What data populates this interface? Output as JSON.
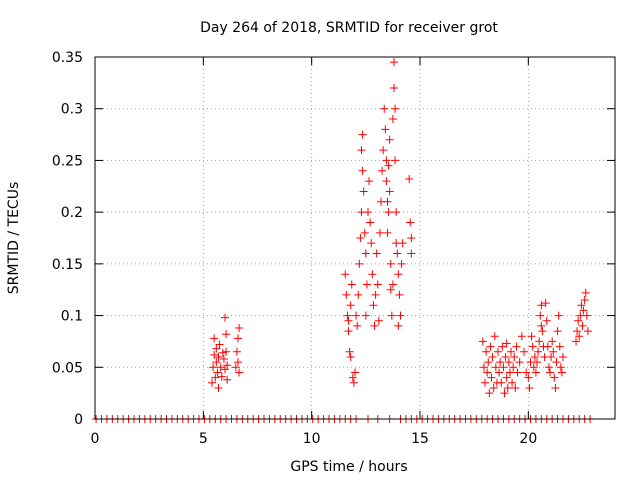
{
  "chart_data": {
    "type": "scatter",
    "title": "Day 264 of 2018, SRMTID for receiver grot",
    "xlabel": "GPS time / hours",
    "ylabel": "SRMTID / TECUs",
    "xlim": [
      0,
      24
    ],
    "ylim": [
      0,
      0.35
    ],
    "xticks": [
      0,
      5,
      10,
      15,
      20
    ],
    "xtick_labels": [
      "0",
      "5",
      "10",
      "15",
      "20"
    ],
    "yticks": [
      0,
      0.05,
      0.1,
      0.15,
      0.2,
      0.25,
      0.3,
      0.35
    ],
    "ytick_labels": [
      "0",
      "0.05",
      "0.1",
      "0.15",
      "0.2",
      "0.25",
      "0.3",
      "0.35"
    ],
    "grid": true,
    "marker": "+",
    "color": "#ff0000",
    "series": [
      {
        "name": "SRMTID",
        "points": [
          [
            0.05,
            0
          ],
          [
            0.3,
            0
          ],
          [
            0.55,
            0
          ],
          [
            0.8,
            0
          ],
          [
            1.05,
            0
          ],
          [
            1.3,
            0
          ],
          [
            1.55,
            0
          ],
          [
            1.8,
            0
          ],
          [
            2.05,
            0
          ],
          [
            2.3,
            0
          ],
          [
            2.55,
            0
          ],
          [
            2.8,
            0
          ],
          [
            3.05,
            0
          ],
          [
            3.3,
            0
          ],
          [
            3.55,
            0
          ],
          [
            3.8,
            0
          ],
          [
            4.05,
            0
          ],
          [
            4.3,
            0
          ],
          [
            4.55,
            0
          ],
          [
            4.8,
            0
          ],
          [
            5.05,
            0
          ],
          [
            5.3,
            0
          ],
          [
            5.55,
            0
          ],
          [
            5.8,
            0
          ],
          [
            6.05,
            0
          ],
          [
            6.3,
            0
          ],
          [
            6.55,
            0
          ],
          [
            6.8,
            0
          ],
          [
            7.05,
            0
          ],
          [
            7.3,
            0
          ],
          [
            7.55,
            0
          ],
          [
            7.8,
            0
          ],
          [
            8.05,
            0
          ],
          [
            8.3,
            0
          ],
          [
            8.55,
            0
          ],
          [
            8.8,
            0
          ],
          [
            9.05,
            0
          ],
          [
            9.3,
            0
          ],
          [
            9.55,
            0
          ],
          [
            9.8,
            0
          ],
          [
            10.05,
            0
          ],
          [
            10.3,
            0
          ],
          [
            10.55,
            0
          ],
          [
            10.8,
            0
          ],
          [
            11.05,
            0
          ],
          [
            11.3,
            0
          ],
          [
            11.55,
            0
          ],
          [
            11.8,
            0
          ],
          [
            12.05,
            0
          ],
          [
            12.6,
            0
          ],
          [
            13.05,
            0
          ],
          [
            13.6,
            0
          ],
          [
            14.1,
            0
          ],
          [
            14.35,
            0
          ],
          [
            14.6,
            0
          ],
          [
            14.85,
            0
          ],
          [
            15.1,
            0
          ],
          [
            15.35,
            0
          ],
          [
            15.6,
            0
          ],
          [
            15.85,
            0
          ],
          [
            16.1,
            0
          ],
          [
            16.35,
            0
          ],
          [
            16.6,
            0
          ],
          [
            16.85,
            0
          ],
          [
            17.1,
            0
          ],
          [
            17.35,
            0
          ],
          [
            17.6,
            0
          ],
          [
            17.85,
            0
          ],
          [
            18.1,
            0
          ],
          [
            18.35,
            0
          ],
          [
            18.6,
            0
          ],
          [
            18.85,
            0
          ],
          [
            19.1,
            0
          ],
          [
            19.35,
            0
          ],
          [
            19.6,
            0
          ],
          [
            19.85,
            0
          ],
          [
            20.1,
            0
          ],
          [
            20.35,
            0
          ],
          [
            20.6,
            0
          ],
          [
            20.85,
            0
          ],
          [
            21.1,
            0
          ],
          [
            21.35,
            0
          ],
          [
            21.6,
            0
          ],
          [
            21.85,
            0
          ],
          [
            22.1,
            0
          ],
          [
            22.35,
            0
          ],
          [
            22.6,
            0
          ],
          [
            22.85,
            0
          ],
          [
            5.4,
            0.035
          ],
          [
            5.45,
            0.05
          ],
          [
            5.5,
            0.062
          ],
          [
            5.5,
            0.078
          ],
          [
            5.55,
            0.04
          ],
          [
            5.6,
            0.055
          ],
          [
            5.6,
            0.068
          ],
          [
            5.65,
            0.045
          ],
          [
            5.7,
            0.03
          ],
          [
            5.7,
            0.06
          ],
          [
            5.75,
            0.072
          ],
          [
            5.8,
            0.05
          ],
          [
            5.85,
            0.041
          ],
          [
            5.9,
            0.064
          ],
          [
            5.95,
            0.058
          ],
          [
            6.0,
            0.048
          ],
          [
            6.0,
            0.098
          ],
          [
            6.05,
            0.082
          ],
          [
            6.05,
            0.065
          ],
          [
            6.1,
            0.052
          ],
          [
            6.1,
            0.038
          ],
          [
            6.5,
            0.05
          ],
          [
            6.55,
            0.065
          ],
          [
            6.6,
            0.078
          ],
          [
            6.6,
            0.055
          ],
          [
            6.65,
            0.088
          ],
          [
            6.65,
            0.045
          ],
          [
            11.55,
            0.14
          ],
          [
            11.6,
            0.12
          ],
          [
            11.65,
            0.1
          ],
          [
            11.7,
            0.095
          ],
          [
            11.7,
            0.085
          ],
          [
            11.75,
            0.065
          ],
          [
            11.8,
            0.11
          ],
          [
            11.8,
            0.06
          ],
          [
            11.85,
            0.13
          ],
          [
            11.9,
            0.04
          ],
          [
            11.95,
            0.035
          ],
          [
            12.0,
            0.045
          ],
          [
            12.05,
            0.1
          ],
          [
            12.1,
            0.09
          ],
          [
            12.15,
            0.12
          ],
          [
            12.2,
            0.15
          ],
          [
            12.25,
            0.175
          ],
          [
            12.3,
            0.2
          ],
          [
            12.3,
            0.26
          ],
          [
            12.35,
            0.275
          ],
          [
            12.35,
            0.24
          ],
          [
            12.4,
            0.22
          ],
          [
            12.45,
            0.18
          ],
          [
            12.5,
            0.16
          ],
          [
            12.5,
            0.1
          ],
          [
            12.55,
            0.13
          ],
          [
            12.6,
            0.2
          ],
          [
            12.65,
            0.23
          ],
          [
            12.7,
            0.19
          ],
          [
            12.75,
            0.17
          ],
          [
            12.8,
            0.14
          ],
          [
            12.85,
            0.11
          ],
          [
            12.9,
            0.09
          ],
          [
            12.95,
            0.12
          ],
          [
            13.0,
            0.16
          ],
          [
            13.05,
            0.13
          ],
          [
            13.1,
            0.095
          ],
          [
            13.15,
            0.18
          ],
          [
            13.2,
            0.21
          ],
          [
            13.25,
            0.24
          ],
          [
            13.3,
            0.26
          ],
          [
            13.35,
            0.3
          ],
          [
            13.4,
            0.28
          ],
          [
            13.45,
            0.25
          ],
          [
            13.45,
            0.23
          ],
          [
            13.5,
            0.21
          ],
          [
            13.5,
            0.18
          ],
          [
            13.55,
            0.2
          ],
          [
            13.55,
            0.245
          ],
          [
            13.6,
            0.27
          ],
          [
            13.6,
            0.22
          ],
          [
            13.65,
            0.15
          ],
          [
            13.65,
            0.125
          ],
          [
            13.7,
            0.1
          ],
          [
            13.75,
            0.13
          ],
          [
            13.75,
            0.29
          ],
          [
            13.8,
            0.32
          ],
          [
            13.8,
            0.345
          ],
          [
            13.85,
            0.3
          ],
          [
            13.85,
            0.25
          ],
          [
            13.9,
            0.2
          ],
          [
            13.9,
            0.17
          ],
          [
            13.95,
            0.16
          ],
          [
            14.0,
            0.14
          ],
          [
            14.0,
            0.09
          ],
          [
            14.05,
            0.12
          ],
          [
            14.1,
            0.1
          ],
          [
            14.15,
            0.15
          ],
          [
            14.2,
            0.17
          ],
          [
            14.5,
            0.232
          ],
          [
            14.55,
            0.19
          ],
          [
            14.6,
            0.175
          ],
          [
            14.6,
            0.16
          ],
          [
            17.9,
            0.075
          ],
          [
            17.95,
            0.05
          ],
          [
            18.0,
            0.035
          ],
          [
            18.05,
            0.065
          ],
          [
            18.1,
            0.045
          ],
          [
            18.15,
            0.055
          ],
          [
            18.2,
            0.025
          ],
          [
            18.25,
            0.07
          ],
          [
            18.3,
            0.04
          ],
          [
            18.35,
            0.06
          ],
          [
            18.4,
            0.03
          ],
          [
            18.45,
            0.08
          ],
          [
            18.5,
            0.05
          ],
          [
            18.55,
            0.035
          ],
          [
            18.6,
            0.065
          ],
          [
            18.65,
            0.045
          ],
          [
            18.7,
            0.055
          ],
          [
            18.75,
            0.035
          ],
          [
            18.8,
            0.07
          ],
          [
            18.85,
            0.05
          ],
          [
            18.9,
            0.025
          ],
          [
            18.95,
            0.06
          ],
          [
            19.0,
            0.04
          ],
          [
            19.0,
            0.073
          ],
          [
            19.05,
            0.03
          ],
          [
            19.1,
            0.055
          ],
          [
            19.15,
            0.045
          ],
          [
            19.2,
            0.065
          ],
          [
            19.25,
            0.035
          ],
          [
            19.3,
            0.05
          ],
          [
            19.35,
            0.06
          ],
          [
            19.4,
            0.03
          ],
          [
            19.45,
            0.07
          ],
          [
            19.5,
            0.045
          ],
          [
            19.6,
            0.055
          ],
          [
            19.7,
            0.08
          ],
          [
            19.8,
            0.065
          ],
          [
            19.9,
            0.045
          ],
          [
            20.0,
            0.04
          ],
          [
            20.05,
            0.03
          ],
          [
            20.1,
            0.055
          ],
          [
            20.15,
            0.08
          ],
          [
            20.2,
            0.07
          ],
          [
            20.25,
            0.05
          ],
          [
            20.3,
            0.06
          ],
          [
            20.35,
            0.045
          ],
          [
            20.4,
            0.055
          ],
          [
            20.45,
            0.065
          ],
          [
            20.5,
            0.075
          ],
          [
            20.55,
            0.1
          ],
          [
            20.6,
            0.11
          ],
          [
            20.6,
            0.09
          ],
          [
            20.65,
            0.085
          ],
          [
            20.7,
            0.07
          ],
          [
            20.75,
            0.06
          ],
          [
            20.8,
            0.112
          ],
          [
            20.85,
            0.095
          ],
          [
            20.9,
            0.07
          ],
          [
            20.95,
            0.05
          ],
          [
            21.0,
            0.045
          ],
          [
            21.05,
            0.06
          ],
          [
            21.1,
            0.075
          ],
          [
            21.15,
            0.065
          ],
          [
            21.2,
            0.04
          ],
          [
            21.25,
            0.03
          ],
          [
            21.3,
            0.055
          ],
          [
            21.35,
            0.085
          ],
          [
            21.4,
            0.1
          ],
          [
            21.45,
            0.07
          ],
          [
            21.5,
            0.05
          ],
          [
            21.55,
            0.045
          ],
          [
            21.6,
            0.06
          ],
          [
            22.2,
            0.075
          ],
          [
            22.25,
            0.085
          ],
          [
            22.3,
            0.095
          ],
          [
            22.35,
            0.08
          ],
          [
            22.4,
            0.1
          ],
          [
            22.45,
            0.11
          ],
          [
            22.5,
            0.09
          ],
          [
            22.55,
            0.105
          ],
          [
            22.6,
            0.115
          ],
          [
            22.65,
            0.122
          ],
          [
            22.7,
            0.1
          ],
          [
            22.75,
            0.085
          ]
        ]
      }
    ]
  }
}
